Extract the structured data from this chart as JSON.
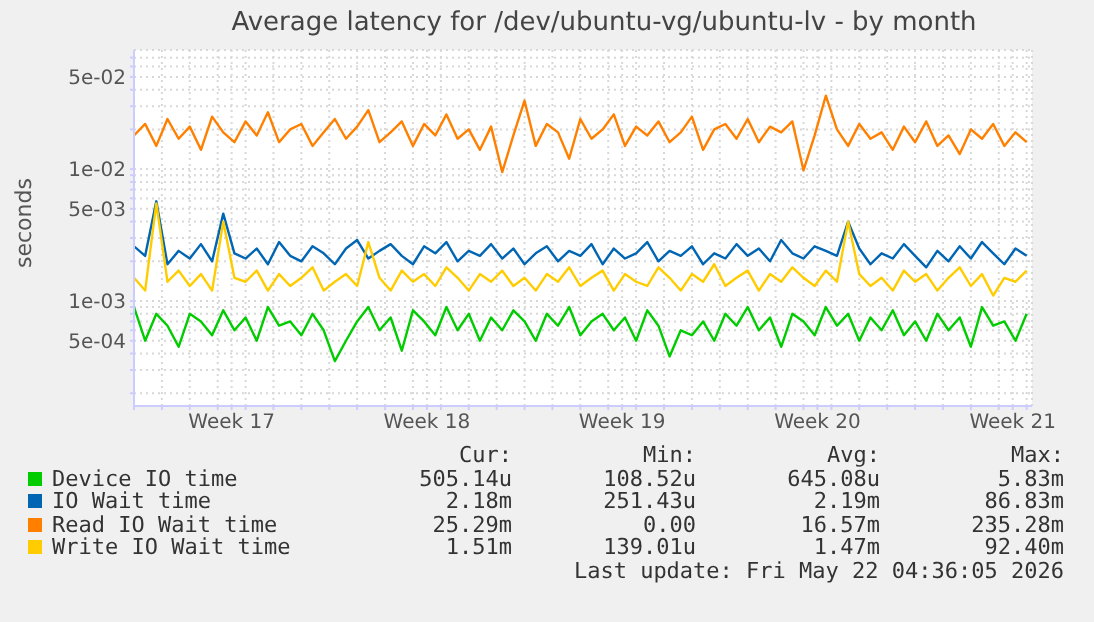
{
  "chart_data": {
    "type": "line",
    "title": "Average latency for /dev/ubuntu-vg/ubuntu-lv - by month",
    "ylabel": "seconds",
    "log": "y",
    "grid": true,
    "legend": "bottom",
    "marker": "none",
    "line_style": "solid",
    "ylim": [
      0.00016,
      0.08
    ],
    "yticks": [
      {
        "value": 0.0002,
        "label": null
      },
      {
        "value": 0.0003,
        "label": null
      },
      {
        "value": 0.0004,
        "label": null
      },
      {
        "value": 0.0005,
        "label": "5e-04"
      },
      {
        "value": 0.0006,
        "label": null
      },
      {
        "value": 0.0007,
        "label": null
      },
      {
        "value": 0.0008,
        "label": null
      },
      {
        "value": 0.0009,
        "label": null
      },
      {
        "value": 0.001,
        "label": "1e-03"
      },
      {
        "value": 0.002,
        "label": null
      },
      {
        "value": 0.003,
        "label": null
      },
      {
        "value": 0.004,
        "label": null
      },
      {
        "value": 0.005,
        "label": "5e-03"
      },
      {
        "value": 0.006,
        "label": null
      },
      {
        "value": 0.007,
        "label": null
      },
      {
        "value": 0.008,
        "label": null
      },
      {
        "value": 0.009,
        "label": null
      },
      {
        "value": 0.01,
        "label": "1e-02"
      },
      {
        "value": 0.02,
        "label": null
      },
      {
        "value": 0.03,
        "label": null
      },
      {
        "value": 0.04,
        "label": null
      },
      {
        "value": 0.05,
        "label": "5e-02"
      },
      {
        "value": 0.06,
        "label": null
      },
      {
        "value": 0.07,
        "label": null
      }
    ],
    "xlim": [
      "2026-04-20T00:00",
      "2026-05-22T04:36"
    ],
    "xticks": [
      {
        "value": "2026-04-20T00:00",
        "label": null
      },
      {
        "value": "2026-04-21T00:00",
        "label": null
      },
      {
        "value": "2026-04-22T00:00",
        "label": null
      },
      {
        "value": "2026-04-23T00:00",
        "label": null
      },
      {
        "value": "2026-04-23T12:00",
        "label": "Week 17"
      },
      {
        "value": "2026-04-24T00:00",
        "label": null
      },
      {
        "value": "2026-04-25T00:00",
        "label": null
      },
      {
        "value": "2026-04-26T00:00",
        "label": null
      },
      {
        "value": "2026-04-27T00:00",
        "label": null
      },
      {
        "value": "2026-04-28T00:00",
        "label": null
      },
      {
        "value": "2026-04-29T00:00",
        "label": null
      },
      {
        "value": "2026-04-30T00:00",
        "label": null
      },
      {
        "value": "2026-04-30T12:00",
        "label": "Week 18"
      },
      {
        "value": "2026-05-01T00:00",
        "label": null
      },
      {
        "value": "2026-05-02T00:00",
        "label": null
      },
      {
        "value": "2026-05-03T00:00",
        "label": null
      },
      {
        "value": "2026-05-04T00:00",
        "label": null
      },
      {
        "value": "2026-05-05T00:00",
        "label": null
      },
      {
        "value": "2026-05-06T00:00",
        "label": null
      },
      {
        "value": "2026-05-07T00:00",
        "label": null
      },
      {
        "value": "2026-05-07T12:00",
        "label": "Week 19"
      },
      {
        "value": "2026-05-08T00:00",
        "label": null
      },
      {
        "value": "2026-05-09T00:00",
        "label": null
      },
      {
        "value": "2026-05-10T00:00",
        "label": null
      },
      {
        "value": "2026-05-11T00:00",
        "label": null
      },
      {
        "value": "2026-05-12T00:00",
        "label": null
      },
      {
        "value": "2026-05-13T00:00",
        "label": null
      },
      {
        "value": "2026-05-14T00:00",
        "label": null
      },
      {
        "value": "2026-05-14T12:00",
        "label": "Week 20"
      },
      {
        "value": "2026-05-15T00:00",
        "label": null
      },
      {
        "value": "2026-05-16T00:00",
        "label": null
      },
      {
        "value": "2026-05-17T00:00",
        "label": null
      },
      {
        "value": "2026-05-18T00:00",
        "label": null
      },
      {
        "value": "2026-05-19T00:00",
        "label": null
      },
      {
        "value": "2026-05-20T00:00",
        "label": null
      },
      {
        "value": "2026-05-21T00:00",
        "label": null
      },
      {
        "value": "2026-05-21T12:00",
        "label": "Week 21"
      },
      {
        "value": "2026-05-22T00:00",
        "label": null
      }
    ],
    "x": [
      "2026-04-20T00:00",
      "2026-04-20T09:36",
      "2026-04-20T19:12",
      "2026-04-21T04:48",
      "2026-04-21T14:24",
      "2026-04-22T00:00",
      "2026-04-22T09:36",
      "2026-04-22T19:12",
      "2026-04-23T04:48",
      "2026-04-23T14:24",
      "2026-04-24T00:00",
      "2026-04-24T09:36",
      "2026-04-24T19:12",
      "2026-04-25T04:48",
      "2026-04-25T14:24",
      "2026-04-26T00:00",
      "2026-04-26T09:36",
      "2026-04-26T19:12",
      "2026-04-27T04:48",
      "2026-04-27T14:24",
      "2026-04-28T00:00",
      "2026-04-28T09:36",
      "2026-04-28T19:12",
      "2026-04-29T04:48",
      "2026-04-29T14:24",
      "2026-04-30T00:00",
      "2026-04-30T09:36",
      "2026-04-30T19:12",
      "2026-05-01T04:48",
      "2026-05-01T14:24",
      "2026-05-02T00:00",
      "2026-05-02T09:36",
      "2026-05-02T19:12",
      "2026-05-03T04:48",
      "2026-05-03T14:24",
      "2026-05-04T00:00",
      "2026-05-04T09:36",
      "2026-05-04T19:12",
      "2026-05-05T04:48",
      "2026-05-05T14:24",
      "2026-05-06T00:00",
      "2026-05-06T09:36",
      "2026-05-06T19:12",
      "2026-05-07T04:48",
      "2026-05-07T14:24",
      "2026-05-08T00:00",
      "2026-05-08T09:36",
      "2026-05-08T19:12",
      "2026-05-09T04:48",
      "2026-05-09T14:24",
      "2026-05-10T00:00",
      "2026-05-10T09:36",
      "2026-05-10T19:12",
      "2026-05-11T04:48",
      "2026-05-11T14:24",
      "2026-05-12T00:00",
      "2026-05-12T09:36",
      "2026-05-12T19:12",
      "2026-05-13T04:48",
      "2026-05-13T14:24",
      "2026-05-14T00:00",
      "2026-05-14T09:36",
      "2026-05-14T19:12",
      "2026-05-15T04:48",
      "2026-05-15T14:24",
      "2026-05-16T00:00",
      "2026-05-16T09:36",
      "2026-05-16T19:12",
      "2026-05-17T04:48",
      "2026-05-17T14:24",
      "2026-05-18T00:00",
      "2026-05-18T09:36",
      "2026-05-18T19:12",
      "2026-05-19T04:48",
      "2026-05-19T14:24",
      "2026-05-20T00:00",
      "2026-05-20T09:36",
      "2026-05-20T19:12",
      "2026-05-21T04:48",
      "2026-05-21T14:24",
      "2026-05-22T00:00"
    ],
    "series": [
      {
        "name": "Device IO time",
        "color": "#00cc00",
        "values": [
          0.0009,
          0.0005,
          0.0008,
          0.00065,
          0.00045,
          0.0008,
          0.0007,
          0.00055,
          0.00085,
          0.0006,
          0.00075,
          0.0005,
          0.0009,
          0.00065,
          0.0007,
          0.00055,
          0.0008,
          0.0006,
          0.00035,
          0.0005,
          0.0007,
          0.0009,
          0.0006,
          0.00075,
          0.00042,
          0.00085,
          0.0007,
          0.00055,
          0.0009,
          0.0006,
          0.0008,
          0.0005,
          0.00075,
          0.0006,
          0.00085,
          0.0007,
          0.0005,
          0.0008,
          0.00065,
          0.0009,
          0.00055,
          0.0007,
          0.0008,
          0.0006,
          0.00075,
          0.0005,
          0.00085,
          0.00065,
          0.00038,
          0.0006,
          0.00055,
          0.0007,
          0.0005,
          0.0008,
          0.00065,
          0.0009,
          0.0006,
          0.00075,
          0.00045,
          0.0008,
          0.0007,
          0.00055,
          0.0009,
          0.00065,
          0.0008,
          0.0005,
          0.00075,
          0.0006,
          0.00085,
          0.00055,
          0.0007,
          0.0005,
          0.0008,
          0.0006,
          0.00075,
          0.00045,
          0.0009,
          0.00065,
          0.0007,
          0.0005,
          0.0008
        ]
      },
      {
        "name": "IO Wait time",
        "color": "#0066b3",
        "values": [
          0.0026,
          0.0022,
          0.0057,
          0.0019,
          0.0024,
          0.0021,
          0.0027,
          0.002,
          0.0046,
          0.0023,
          0.0021,
          0.0025,
          0.0019,
          0.0028,
          0.0022,
          0.002,
          0.0026,
          0.0023,
          0.0019,
          0.0025,
          0.0029,
          0.0021,
          0.0024,
          0.0027,
          0.0022,
          0.0019,
          0.0026,
          0.0023,
          0.0028,
          0.002,
          0.0024,
          0.0022,
          0.0027,
          0.0021,
          0.0025,
          0.0019,
          0.0023,
          0.0026,
          0.002,
          0.0024,
          0.0022,
          0.0027,
          0.0019,
          0.0025,
          0.0021,
          0.0023,
          0.0028,
          0.002,
          0.0024,
          0.0022,
          0.0026,
          0.0019,
          0.0023,
          0.0021,
          0.0027,
          0.0022,
          0.0025,
          0.002,
          0.0029,
          0.0023,
          0.0021,
          0.0026,
          0.0024,
          0.0022,
          0.004,
          0.0025,
          0.0019,
          0.0023,
          0.0021,
          0.0027,
          0.0022,
          0.0018,
          0.0024,
          0.002,
          0.0026,
          0.0021,
          0.0028,
          0.0023,
          0.0019,
          0.0025,
          0.0022
        ]
      },
      {
        "name": "Read IO Wait time",
        "color": "#ff8000",
        "values": [
          0.018,
          0.022,
          0.015,
          0.024,
          0.017,
          0.021,
          0.014,
          0.025,
          0.019,
          0.016,
          0.023,
          0.018,
          0.027,
          0.016,
          0.02,
          0.022,
          0.015,
          0.019,
          0.024,
          0.017,
          0.021,
          0.028,
          0.016,
          0.019,
          0.023,
          0.015,
          0.022,
          0.018,
          0.026,
          0.017,
          0.02,
          0.014,
          0.021,
          0.0095,
          0.018,
          0.033,
          0.015,
          0.022,
          0.019,
          0.012,
          0.024,
          0.017,
          0.02,
          0.026,
          0.015,
          0.021,
          0.018,
          0.023,
          0.016,
          0.019,
          0.025,
          0.014,
          0.02,
          0.022,
          0.017,
          0.024,
          0.016,
          0.021,
          0.019,
          0.023,
          0.0098,
          0.018,
          0.036,
          0.02,
          0.015,
          0.022,
          0.017,
          0.019,
          0.014,
          0.021,
          0.016,
          0.023,
          0.015,
          0.018,
          0.013,
          0.02,
          0.017,
          0.022,
          0.015,
          0.019,
          0.016
        ]
      },
      {
        "name": "Write IO Wait time",
        "color": "#ffcc00",
        "values": [
          0.0015,
          0.0012,
          0.0055,
          0.0014,
          0.0017,
          0.0013,
          0.0016,
          0.0012,
          0.004,
          0.0015,
          0.0014,
          0.0017,
          0.0012,
          0.0016,
          0.0013,
          0.0015,
          0.0018,
          0.0012,
          0.0014,
          0.0016,
          0.0013,
          0.0028,
          0.0015,
          0.0012,
          0.0017,
          0.0014,
          0.0016,
          0.0013,
          0.0018,
          0.0015,
          0.0012,
          0.0016,
          0.0014,
          0.0017,
          0.0013,
          0.0015,
          0.0012,
          0.0016,
          0.0014,
          0.0018,
          0.0013,
          0.0015,
          0.0017,
          0.0012,
          0.0016,
          0.0014,
          0.0013,
          0.0018,
          0.0015,
          0.0012,
          0.0016,
          0.0014,
          0.0019,
          0.0013,
          0.0015,
          0.0017,
          0.0012,
          0.0016,
          0.0014,
          0.0018,
          0.0015,
          0.0013,
          0.0017,
          0.0014,
          0.004,
          0.0016,
          0.0013,
          0.0015,
          0.0012,
          0.0017,
          0.0014,
          0.0016,
          0.0012,
          0.0015,
          0.0018,
          0.0013,
          0.0016,
          0.0011,
          0.0015,
          0.0014,
          0.0017
        ]
      }
    ],
    "annotations": [
      "Cur:",
      "Min:",
      "Avg:",
      "Max:",
      "505.14u",
      "108.52u",
      "645.08u",
      "5.83m",
      "2.18m",
      "251.43u",
      "2.19m",
      "86.83m",
      "25.29m",
      "0.00",
      "16.57m",
      "235.28m",
      "1.51m",
      "139.01u",
      "1.47m",
      "92.40m",
      "Last update: Fri May 22 04:36:05 2026"
    ]
  }
}
